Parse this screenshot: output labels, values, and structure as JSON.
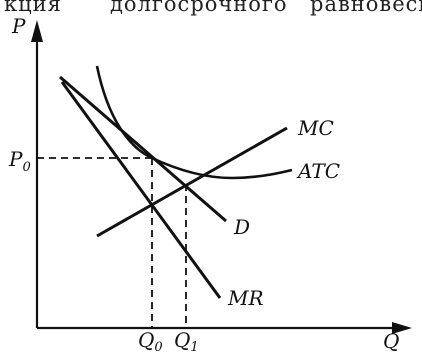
{
  "caption": {
    "left": "кция",
    "mid": "долгосрочного",
    "right": "равновесия"
  },
  "axes": {
    "y_label": "P",
    "x_label": "Q",
    "price_level_label": "P",
    "price_level_sub": "0",
    "q0_label": "Q",
    "q0_sub": "0",
    "q1_label": "Q",
    "q1_sub": "1"
  },
  "curves": {
    "mc": "MC",
    "atc": "ATC",
    "d": "D",
    "mr": "MR"
  },
  "colors": {
    "ink": "#111111",
    "background": "#ffffff"
  }
}
